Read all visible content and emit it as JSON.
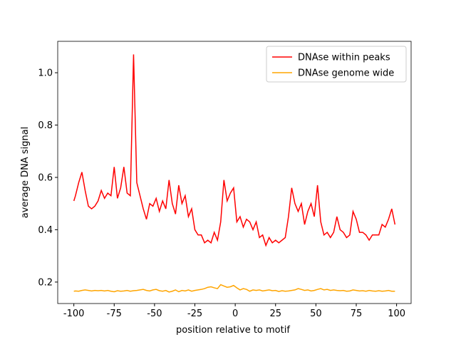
{
  "chart_data": {
    "type": "line",
    "xlabel": "position relative to motif",
    "ylabel": "average DNA signal",
    "x": [
      -100,
      -99,
      -97,
      -95,
      -93,
      -91,
      -89,
      -87,
      -85,
      -83,
      -81,
      -79,
      -77,
      -75,
      -73,
      -71,
      -69,
      -67,
      -65,
      -63,
      -61,
      -59,
      -57,
      -55,
      -53,
      -51,
      -49,
      -47,
      -45,
      -43,
      -41,
      -39,
      -37,
      -35,
      -33,
      -31,
      -29,
      -27,
      -25,
      -23,
      -21,
      -19,
      -17,
      -15,
      -13,
      -11,
      -9,
      -7,
      -5,
      -3,
      -1,
      1,
      3,
      5,
      7,
      9,
      11,
      13,
      15,
      17,
      19,
      21,
      23,
      25,
      27,
      29,
      31,
      33,
      35,
      37,
      39,
      41,
      43,
      45,
      47,
      49,
      51,
      53,
      55,
      57,
      59,
      61,
      63,
      65,
      67,
      69,
      71,
      73,
      75,
      77,
      79,
      81,
      83,
      85,
      87,
      89,
      91,
      93,
      95,
      97,
      99
    ],
    "series": [
      {
        "name": "DNAse within peaks",
        "color": "#ff0000",
        "values": [
          0.51,
          0.53,
          0.58,
          0.62,
          0.55,
          0.49,
          0.48,
          0.49,
          0.51,
          0.55,
          0.52,
          0.54,
          0.53,
          0.64,
          0.52,
          0.56,
          0.64,
          0.54,
          0.53,
          1.07,
          0.58,
          0.53,
          0.48,
          0.44,
          0.5,
          0.49,
          0.52,
          0.47,
          0.51,
          0.48,
          0.59,
          0.5,
          0.46,
          0.57,
          0.5,
          0.53,
          0.45,
          0.48,
          0.4,
          0.38,
          0.38,
          0.35,
          0.36,
          0.35,
          0.39,
          0.36,
          0.43,
          0.59,
          0.51,
          0.54,
          0.56,
          0.43,
          0.45,
          0.41,
          0.44,
          0.43,
          0.4,
          0.43,
          0.37,
          0.38,
          0.34,
          0.37,
          0.35,
          0.36,
          0.35,
          0.36,
          0.37,
          0.45,
          0.56,
          0.5,
          0.47,
          0.5,
          0.42,
          0.47,
          0.5,
          0.45,
          0.57,
          0.43,
          0.38,
          0.39,
          0.37,
          0.39,
          0.45,
          0.4,
          0.39,
          0.37,
          0.38,
          0.47,
          0.44,
          0.39,
          0.39,
          0.38,
          0.36,
          0.38,
          0.38,
          0.38,
          0.42,
          0.41,
          0.44,
          0.48,
          0.42
        ]
      },
      {
        "name": "DNAse genome wide",
        "color": "#ffa500",
        "values": [
          0.165,
          0.166,
          0.165,
          0.168,
          0.17,
          0.168,
          0.166,
          0.168,
          0.167,
          0.168,
          0.166,
          0.168,
          0.165,
          0.163,
          0.167,
          0.165,
          0.166,
          0.168,
          0.165,
          0.167,
          0.168,
          0.17,
          0.172,
          0.168,
          0.166,
          0.17,
          0.172,
          0.167,
          0.165,
          0.168,
          0.162,
          0.165,
          0.17,
          0.163,
          0.168,
          0.166,
          0.17,
          0.165,
          0.168,
          0.17,
          0.172,
          0.175,
          0.18,
          0.182,
          0.178,
          0.175,
          0.19,
          0.185,
          0.18,
          0.182,
          0.187,
          0.178,
          0.17,
          0.175,
          0.172,
          0.165,
          0.17,
          0.168,
          0.17,
          0.166,
          0.168,
          0.17,
          0.167,
          0.168,
          0.164,
          0.167,
          0.165,
          0.166,
          0.168,
          0.17,
          0.175,
          0.172,
          0.168,
          0.17,
          0.166,
          0.168,
          0.172,
          0.175,
          0.17,
          0.172,
          0.168,
          0.17,
          0.168,
          0.167,
          0.168,
          0.165,
          0.166,
          0.17,
          0.168,
          0.166,
          0.167,
          0.165,
          0.168,
          0.166,
          0.165,
          0.167,
          0.165,
          0.166,
          0.168,
          0.165,
          0.165
        ]
      }
    ],
    "xlim": [
      -110,
      109
    ],
    "ylim": [
      0.118,
      1.12
    ],
    "xticks": [
      -100,
      -75,
      -50,
      -25,
      0,
      25,
      50,
      75,
      100
    ],
    "yticks": [
      0.2,
      0.4,
      0.6,
      0.8,
      {
        "value": 1.0,
        "label": "1.0"
      }
    ],
    "legend": "upper right"
  }
}
